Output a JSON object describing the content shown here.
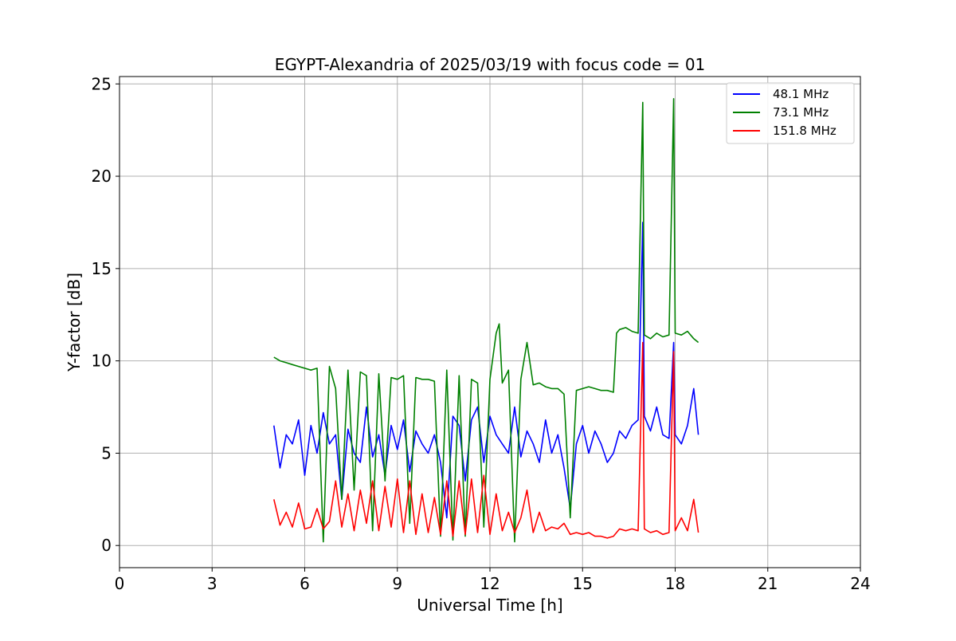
{
  "chart_data": {
    "type": "line",
    "title": "EGYPT-Alexandria of 2025/03/19 with focus code = 01",
    "xlabel": "Universal Time [h]",
    "ylabel": "Y-factor [dB]",
    "xlim": [
      0,
      24
    ],
    "ylim": [
      -1.2,
      25.4
    ],
    "xticks": [
      0,
      3,
      6,
      9,
      12,
      15,
      18,
      21,
      24
    ],
    "yticks": [
      0,
      5,
      10,
      15,
      20,
      25
    ],
    "grid": true,
    "legend_position": "top-right",
    "series": [
      {
        "name": "48.1 MHz",
        "label": "  48.1 MHz",
        "color": "#0000ff",
        "x": [
          5.0,
          5.2,
          5.4,
          5.6,
          5.8,
          6.0,
          6.2,
          6.4,
          6.6,
          6.8,
          7.0,
          7.2,
          7.4,
          7.6,
          7.8,
          8.0,
          8.2,
          8.4,
          8.6,
          8.8,
          9.0,
          9.2,
          9.4,
          9.6,
          9.8,
          10.0,
          10.2,
          10.4,
          10.6,
          10.8,
          11.0,
          11.2,
          11.4,
          11.6,
          11.8,
          12.0,
          12.2,
          12.4,
          12.6,
          12.8,
          13.0,
          13.2,
          13.4,
          13.6,
          13.8,
          14.0,
          14.2,
          14.4,
          14.6,
          14.8,
          15.0,
          15.2,
          15.4,
          15.6,
          15.8,
          16.0,
          16.2,
          16.4,
          16.6,
          16.8,
          16.95,
          17.0,
          17.2,
          17.4,
          17.6,
          17.8,
          17.95,
          18.0,
          18.2,
          18.4,
          18.6,
          18.75
        ],
        "values": [
          6.5,
          4.2,
          6.0,
          5.5,
          6.8,
          3.8,
          6.5,
          5.0,
          7.2,
          5.5,
          6.0,
          2.5,
          6.3,
          5.0,
          4.5,
          7.5,
          4.8,
          6.0,
          3.8,
          6.5,
          5.2,
          6.8,
          4.0,
          6.2,
          5.5,
          5.0,
          6.0,
          4.5,
          1.5,
          7.0,
          6.5,
          3.5,
          6.8,
          7.5,
          4.5,
          7.0,
          6.0,
          5.5,
          5.0,
          7.5,
          4.8,
          6.2,
          5.5,
          4.5,
          6.8,
          5.0,
          6.0,
          4.2,
          2.0,
          5.5,
          6.5,
          5.0,
          6.2,
          5.5,
          4.5,
          5.0,
          6.2,
          5.8,
          6.5,
          6.8,
          17.5,
          7.0,
          6.2,
          7.5,
          6.0,
          5.8,
          11.0,
          6.0,
          5.5,
          6.5,
          8.5,
          6.0
        ]
      },
      {
        "name": "73.1 MHz",
        "label": "  73.1 MHz",
        "color": "#008000",
        "x": [
          5.0,
          5.2,
          5.4,
          5.6,
          5.8,
          6.0,
          6.2,
          6.4,
          6.6,
          6.8,
          7.0,
          7.2,
          7.4,
          7.6,
          7.8,
          8.0,
          8.2,
          8.4,
          8.6,
          8.8,
          9.0,
          9.2,
          9.4,
          9.6,
          9.8,
          10.0,
          10.2,
          10.4,
          10.6,
          10.8,
          11.0,
          11.2,
          11.4,
          11.6,
          11.8,
          12.0,
          12.2,
          12.3,
          12.4,
          12.6,
          12.8,
          13.0,
          13.2,
          13.4,
          13.6,
          13.8,
          14.0,
          14.2,
          14.4,
          14.6,
          14.8,
          15.0,
          15.2,
          15.4,
          15.6,
          15.8,
          16.0,
          16.1,
          16.2,
          16.4,
          16.6,
          16.8,
          16.95,
          17.0,
          17.2,
          17.4,
          17.6,
          17.8,
          17.95,
          18.0,
          18.2,
          18.4,
          18.6,
          18.75
        ],
        "values": [
          10.2,
          10.0,
          9.9,
          9.8,
          9.7,
          9.6,
          9.5,
          9.6,
          0.2,
          9.7,
          8.5,
          2.5,
          9.5,
          3.0,
          9.4,
          9.2,
          0.8,
          9.3,
          3.5,
          9.1,
          9.0,
          9.2,
          1.2,
          9.1,
          9.0,
          9.0,
          8.9,
          0.5,
          9.5,
          0.3,
          9.2,
          0.5,
          9.0,
          8.8,
          1.0,
          9.0,
          11.5,
          12.0,
          8.8,
          9.5,
          0.2,
          9.0,
          11.0,
          8.7,
          8.8,
          8.6,
          8.5,
          8.5,
          8.2,
          1.5,
          8.4,
          8.5,
          8.6,
          8.5,
          8.4,
          8.4,
          8.3,
          11.5,
          11.7,
          11.8,
          11.6,
          11.5,
          24.0,
          11.4,
          11.2,
          11.5,
          11.3,
          11.4,
          24.2,
          11.5,
          11.4,
          11.6,
          11.2,
          11.0
        ]
      },
      {
        "name": "151.8 MHz",
        "label": "151.8 MHz",
        "color": "#ff0000",
        "x": [
          5.0,
          5.2,
          5.4,
          5.6,
          5.8,
          6.0,
          6.2,
          6.4,
          6.6,
          6.8,
          7.0,
          7.2,
          7.4,
          7.6,
          7.8,
          8.0,
          8.2,
          8.4,
          8.6,
          8.8,
          9.0,
          9.2,
          9.4,
          9.6,
          9.8,
          10.0,
          10.2,
          10.4,
          10.6,
          10.8,
          11.0,
          11.2,
          11.4,
          11.6,
          11.8,
          12.0,
          12.2,
          12.4,
          12.6,
          12.8,
          13.0,
          13.2,
          13.4,
          13.6,
          13.8,
          14.0,
          14.2,
          14.4,
          14.6,
          14.8,
          15.0,
          15.2,
          15.4,
          15.6,
          15.8,
          16.0,
          16.2,
          16.4,
          16.6,
          16.8,
          16.95,
          17.0,
          17.2,
          17.4,
          17.6,
          17.8,
          17.95,
          18.0,
          18.2,
          18.4,
          18.6,
          18.75
        ],
        "values": [
          2.5,
          1.1,
          1.8,
          1.0,
          2.3,
          0.9,
          1.0,
          2.0,
          0.9,
          1.3,
          3.5,
          1.0,
          2.8,
          0.8,
          3.0,
          1.2,
          3.5,
          0.8,
          3.2,
          1.0,
          3.6,
          0.7,
          3.5,
          0.6,
          2.8,
          0.7,
          2.6,
          0.6,
          3.5,
          0.5,
          3.5,
          0.6,
          3.6,
          0.7,
          3.8,
          0.6,
          2.8,
          0.8,
          1.8,
          0.7,
          1.5,
          3.0,
          0.7,
          1.8,
          0.8,
          1.0,
          0.9,
          1.2,
          0.6,
          0.7,
          0.6,
          0.7,
          0.5,
          0.5,
          0.4,
          0.5,
          0.9,
          0.8,
          0.9,
          0.8,
          11.0,
          0.9,
          0.7,
          0.8,
          0.6,
          0.7,
          10.5,
          0.8,
          1.5,
          0.8,
          2.5,
          0.7
        ]
      }
    ]
  }
}
